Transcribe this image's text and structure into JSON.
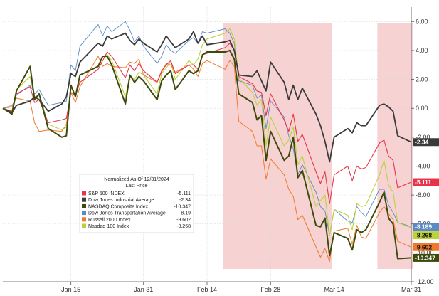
{
  "chart_data": {
    "type": "line",
    "title": "Normalized As Of 12/31/2024",
    "subtitle": "Last Price",
    "y_axis": {
      "position": "right",
      "ylim": [
        -12,
        7
      ],
      "ticks": [
        6,
        4,
        2,
        0,
        -2,
        -4,
        -6,
        -8,
        -10,
        -12
      ],
      "tick_labels": [
        "6.00",
        "4.00",
        "2.00",
        "0.00",
        "-2.00",
        "-4.00",
        "-6.00",
        "-8.00",
        "-10.00",
        "-12.00"
      ]
    },
    "x_axis": {
      "range": [
        "2024-12-31",
        "2025-03-31"
      ],
      "tick_labels": [
        "Jan 15",
        "Jan 31",
        "Feb 14",
        "Feb 28",
        "Mar 14",
        "Mar 31"
      ],
      "tick_dates": [
        "2025-01-15",
        "2025-01-31",
        "2025-02-14",
        "2025-02-28",
        "2025-03-14",
        "2025-03-31"
      ]
    },
    "grid": true,
    "legend_placement": "center-left",
    "highlight_periods": [
      {
        "start": "2025-02-18",
        "end": "2025-03-13"
      },
      {
        "start": "2025-03-24",
        "end": "2025-03-31"
      }
    ],
    "dates": [
      "2024-12-31",
      "2025-01-02",
      "2025-01-03",
      "2025-01-06",
      "2025-01-07",
      "2025-01-08",
      "2025-01-10",
      "2025-01-13",
      "2025-01-14",
      "2025-01-15",
      "2025-01-16",
      "2025-01-17",
      "2025-01-21",
      "2025-01-22",
      "2025-01-23",
      "2025-01-24",
      "2025-01-27",
      "2025-01-28",
      "2025-01-29",
      "2025-01-30",
      "2025-01-31",
      "2025-02-03",
      "2025-02-04",
      "2025-02-05",
      "2025-02-06",
      "2025-02-07",
      "2025-02-10",
      "2025-02-11",
      "2025-02-12",
      "2025-02-13",
      "2025-02-14",
      "2025-02-18",
      "2025-02-19",
      "2025-02-20",
      "2025-02-21",
      "2025-02-24",
      "2025-02-25",
      "2025-02-26",
      "2025-02-27",
      "2025-02-28",
      "2025-03-03",
      "2025-03-04",
      "2025-03-05",
      "2025-03-06",
      "2025-03-07",
      "2025-03-10",
      "2025-03-11",
      "2025-03-12",
      "2025-03-13",
      "2025-03-14",
      "2025-03-17",
      "2025-03-18",
      "2025-03-19",
      "2025-03-20",
      "2025-03-21",
      "2025-03-24",
      "2025-03-25",
      "2025-03-26",
      "2025-03-27",
      "2025-03-28",
      "2025-03-31"
    ],
    "series": [
      {
        "name": "S&P 500 INDEX",
        "value_label": "-5.111",
        "end_label": "-5.111",
        "color": "#e8344a",
        "width": 1.1,
        "values": [
          0,
          -0.2,
          1.0,
          1.5,
          0.4,
          0.6,
          -1.0,
          -0.8,
          -0.7,
          1.1,
          0.9,
          1.8,
          2.7,
          3.3,
          3.9,
          3.6,
          2.1,
          3.0,
          2.6,
          3.1,
          2.6,
          1.8,
          2.6,
          3.0,
          3.3,
          2.4,
          3.0,
          3.0,
          2.7,
          3.7,
          3.8,
          4.2,
          4.5,
          4.0,
          2.2,
          1.7,
          1.2,
          1.1,
          -0.5,
          1.0,
          -0.8,
          -1.6,
          -0.4,
          -2.3,
          -1.8,
          -4.4,
          -5.2,
          -4.4,
          -6.6,
          -4.6,
          -4.0,
          -5.0,
          -4.0,
          -4.2,
          -4.1,
          -2.4,
          -2.2,
          -3.3,
          -3.6,
          -5.5,
          -5.11
        ]
      },
      {
        "name": "Dow Jones Industrial Average",
        "value_label": "-2.34",
        "end_label": "-2.34",
        "color": "#3a3a3a",
        "width": 1.8,
        "values": [
          0,
          -0.3,
          0.2,
          0.5,
          0.8,
          0.6,
          -0.2,
          0.3,
          0.8,
          2.4,
          2.2,
          3.2,
          4.5,
          4.3,
          5.0,
          4.8,
          5.2,
          4.7,
          4.4,
          4.8,
          4.5,
          3.9,
          4.4,
          5.0,
          4.6,
          4.2,
          4.8,
          5.3,
          4.5,
          5.0,
          4.4,
          4.6,
          4.7,
          4.0,
          2.3,
          2.2,
          2.6,
          1.9,
          1.2,
          3.2,
          1.8,
          0.6,
          1.6,
          0.6,
          1.4,
          -0.4,
          -1.2,
          -2.3,
          -3.7,
          -2.0,
          -1.4,
          -1.7,
          -1.0,
          -1.2,
          -1.2,
          0.2,
          0.3,
          0.1,
          -0.2,
          -1.9,
          -2.34
        ]
      },
      {
        "name": "NASDAQ Composite Index",
        "value_label": "-10.347",
        "end_label": "-10.347",
        "color": "#3c4a0c",
        "width": 2.0,
        "values": [
          0,
          -0.4,
          1.2,
          2.9,
          0.6,
          1.0,
          -1.4,
          -2.0,
          -1.9,
          1.6,
          0.8,
          2.3,
          2.9,
          3.6,
          3.6,
          3.0,
          0.3,
          2.3,
          1.8,
          2.2,
          1.9,
          0.6,
          1.9,
          2.3,
          2.6,
          1.3,
          2.6,
          2.4,
          2.6,
          3.7,
          3.9,
          3.9,
          4.0,
          3.4,
          1.0,
          0.4,
          -0.8,
          -0.5,
          -3.6,
          -1.6,
          -3.6,
          -3.3,
          -2.0,
          -4.8,
          -4.3,
          -8.1,
          -8.2,
          -7.6,
          -10.2,
          -8.6,
          -9.0,
          -9.8,
          -8.4,
          -8.6,
          -8.4,
          -6.5,
          -5.8,
          -7.6,
          -8.0,
          -10.4,
          -10.347
        ]
      },
      {
        "name": "Dow Jones Transportation Average",
        "value_label": "-8.19",
        "end_label": "-8.189",
        "color": "#5c8ac4",
        "width": 0.9,
        "values": [
          0,
          0.1,
          0.9,
          1.6,
          1.0,
          1.3,
          0.2,
          0.4,
          0.5,
          3.0,
          2.6,
          4.3,
          5.8,
          5.0,
          5.7,
          5.3,
          6.0,
          5.4,
          4.6,
          5.0,
          4.3,
          3.1,
          3.6,
          4.4,
          4.0,
          3.8,
          4.7,
          4.9,
          4.5,
          5.3,
          5.2,
          5.5,
          5.2,
          4.5,
          1.9,
          1.6,
          0.7,
          0.9,
          -1.4,
          0.5,
          -0.6,
          -1.9,
          -2.8,
          -4.6,
          -3.9,
          -5.8,
          -6.8,
          -7.1,
          -8.8,
          -7.0,
          -7.8,
          -7.9,
          -6.8,
          -7.2,
          -7.5,
          -5.6,
          -5.6,
          -6.7,
          -7.2,
          -7.9,
          -8.19
        ]
      },
      {
        "name": "Russell 2000 Index",
        "value_label": "-9.602",
        "end_label": "-9.602",
        "color": "#f07a2a",
        "width": 1.0,
        "values": [
          0,
          0.2,
          0.7,
          0.5,
          -1.0,
          -1.6,
          -1.5,
          -1.6,
          -1.1,
          1.1,
          0.4,
          1.5,
          3.6,
          2.9,
          3.1,
          2.9,
          2.8,
          3.2,
          3.1,
          3.4,
          2.3,
          1.8,
          2.5,
          3.1,
          3.0,
          2.5,
          3.0,
          2.7,
          2.2,
          3.1,
          3.3,
          2.7,
          3.3,
          2.9,
          -0.9,
          -1.6,
          -2.6,
          -2.6,
          -4.9,
          -3.5,
          -4.6,
          -5.6,
          -6.1,
          -7.7,
          -7.4,
          -9.6,
          -10.3,
          -9.7,
          -10.6,
          -8.5,
          -8.3,
          -9.4,
          -8.1,
          -8.9,
          -9.0,
          -7.2,
          -6.8,
          -7.3,
          -7.7,
          -9.2,
          -9.602
        ]
      },
      {
        "name": "Nasdaq-100 Index",
        "value_label": "-8.268",
        "end_label": "-8.268",
        "color": "#bcd23a",
        "width": 1.1,
        "values": [
          0,
          -0.2,
          1.3,
          2.2,
          0.7,
          1.0,
          -1.1,
          -1.5,
          -1.3,
          1.6,
          0.9,
          2.3,
          2.9,
          3.6,
          3.7,
          3.3,
          0.8,
          2.3,
          2.0,
          2.5,
          2.3,
          1.0,
          2.4,
          2.8,
          3.2,
          2.0,
          3.3,
          3.0,
          3.4,
          4.4,
          4.8,
          5.2,
          5.5,
          4.8,
          2.1,
          1.1,
          0.2,
          0.6,
          -2.6,
          -0.6,
          -2.6,
          -2.2,
          -1.3,
          -3.9,
          -3.3,
          -6.8,
          -6.4,
          -6.0,
          -8.8,
          -7.0,
          -7.4,
          -8.4,
          -6.6,
          -6.8,
          -6.7,
          -4.6,
          -3.6,
          -5.3,
          -5.8,
          -7.9,
          -8.268
        ]
      }
    ]
  }
}
